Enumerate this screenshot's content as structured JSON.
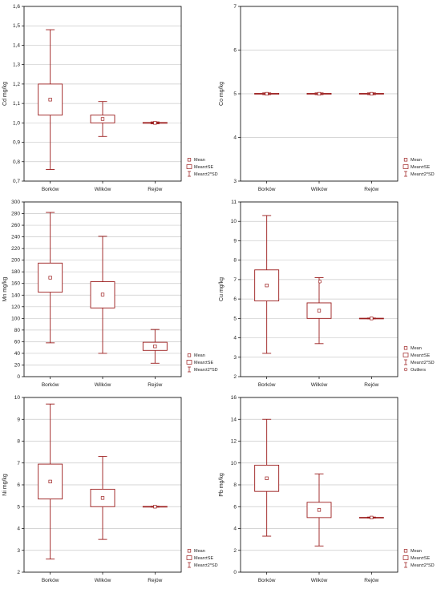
{
  "colors": {
    "box": "#9b1c1c",
    "grid": "#c9c9c9",
    "frame": "#000000",
    "text": "#222222"
  },
  "legend_labels": {
    "mean": "Mean",
    "se": "Mean±SE",
    "sd": "Mean±2*SD",
    "outliers": "Outliers"
  },
  "chart_data": [
    {
      "type": "box",
      "ylabel": "Cd mg/kg",
      "categories": [
        "Borków",
        "Wilków",
        "Rejów"
      ],
      "ylim": [
        0.7,
        1.6
      ],
      "yticks": [
        0.7,
        0.8,
        0.9,
        1.0,
        1.1,
        1.2,
        1.3,
        1.4,
        1.5,
        1.6
      ],
      "ytick_labels": [
        "0,7",
        "0,8",
        "0,9",
        "1,0",
        "1,1",
        "1,2",
        "1,3",
        "1,4",
        "1,5",
        "1,6"
      ],
      "mean": [
        1.12,
        1.02,
        1.0
      ],
      "se_low": [
        1.04,
        1.0,
        0.998
      ],
      "se_high": [
        1.2,
        1.04,
        1.002
      ],
      "sd_low": [
        0.76,
        0.93,
        0.995
      ],
      "sd_high": [
        1.48,
        1.11,
        1.005
      ],
      "legend": [
        "Mean",
        "Mean±SE",
        "Mean±2*SD"
      ]
    },
    {
      "type": "box",
      "ylabel": "Co mg/kg",
      "categories": [
        "Borków",
        "Wilków",
        "Rejów"
      ],
      "ylim": [
        3,
        7
      ],
      "yticks": [
        3,
        4,
        5,
        6,
        7
      ],
      "ytick_labels": [
        "3",
        "4",
        "5",
        "6",
        "7"
      ],
      "mean": [
        5.0,
        5.0,
        5.0
      ],
      "se_low": [
        4.99,
        4.99,
        4.99
      ],
      "se_high": [
        5.01,
        5.01,
        5.01
      ],
      "sd_low": [
        4.98,
        4.98,
        4.98
      ],
      "sd_high": [
        5.02,
        5.02,
        5.02
      ],
      "legend": [
        "Mean",
        "Mean±SE",
        "Mean±2*SD"
      ]
    },
    {
      "type": "box",
      "ylabel": "Mn mg/kg",
      "categories": [
        "Borków",
        "Wilków",
        "Rejów"
      ],
      "ylim": [
        0,
        300
      ],
      "yticks": [
        0,
        20,
        40,
        60,
        80,
        100,
        120,
        140,
        160,
        180,
        200,
        220,
        240,
        260,
        280,
        300
      ],
      "ytick_labels": [
        "0",
        "20",
        "40",
        "60",
        "80",
        "100",
        "120",
        "140",
        "160",
        "180",
        "200",
        "220",
        "240",
        "260",
        "280",
        "300"
      ],
      "mean": [
        170,
        141,
        52
      ],
      "se_low": [
        145,
        118,
        45
      ],
      "se_high": [
        195,
        163,
        59
      ],
      "sd_low": [
        58,
        40,
        23
      ],
      "sd_high": [
        282,
        241,
        81
      ],
      "legend": [
        "Mean",
        "Mean±SE",
        "Mean±2*SD"
      ]
    },
    {
      "type": "box",
      "ylabel": "Cu mg/kg",
      "categories": [
        "Borków",
        "Wilków",
        "Rejów"
      ],
      "ylim": [
        2,
        11
      ],
      "yticks": [
        2,
        3,
        4,
        5,
        6,
        7,
        8,
        9,
        10,
        11
      ],
      "ytick_labels": [
        "2",
        "3",
        "4",
        "5",
        "6",
        "7",
        "8",
        "9",
        "10",
        "11"
      ],
      "mean": [
        6.7,
        5.4,
        5.0
      ],
      "se_low": [
        5.9,
        5.0,
        4.99
      ],
      "se_high": [
        7.5,
        5.8,
        5.01
      ],
      "sd_low": [
        3.2,
        3.7,
        4.98
      ],
      "sd_high": [
        10.3,
        7.1,
        5.02
      ],
      "outliers": [
        null,
        6.9,
        null
      ],
      "legend": [
        "Mean",
        "Mean±SE",
        "Mean±2*SD",
        "Outliers"
      ]
    },
    {
      "type": "box",
      "ylabel": "Ni mg/kg",
      "categories": [
        "Borków",
        "Wilków",
        "Rejów"
      ],
      "ylim": [
        2,
        10
      ],
      "yticks": [
        2,
        3,
        4,
        5,
        6,
        7,
        8,
        9,
        10
      ],
      "ytick_labels": [
        "2",
        "3",
        "4",
        "5",
        "6",
        "7",
        "8",
        "9",
        "10"
      ],
      "mean": [
        6.15,
        5.4,
        5.0
      ],
      "se_low": [
        5.35,
        5.0,
        4.99
      ],
      "se_high": [
        6.95,
        5.8,
        5.01
      ],
      "sd_low": [
        2.6,
        3.5,
        4.98
      ],
      "sd_high": [
        9.7,
        7.3,
        5.02
      ],
      "legend": [
        "Mean",
        "Mean±SE",
        "Mean±2*SD"
      ]
    },
    {
      "type": "box",
      "ylabel": "Pb mg/kg",
      "categories": [
        "Borków",
        "Wilków",
        "Rejów"
      ],
      "ylim": [
        0,
        16
      ],
      "yticks": [
        0,
        2,
        4,
        6,
        8,
        10,
        12,
        14,
        16
      ],
      "ytick_labels": [
        "0",
        "2",
        "4",
        "6",
        "8",
        "10",
        "12",
        "14",
        "16"
      ],
      "mean": [
        8.6,
        5.7,
        5.0
      ],
      "se_low": [
        7.4,
        5.0,
        4.98
      ],
      "se_high": [
        9.8,
        6.4,
        5.02
      ],
      "sd_low": [
        3.3,
        2.4,
        4.95
      ],
      "sd_high": [
        14.0,
        9.0,
        5.05
      ],
      "legend": [
        "Mean",
        "Mean±SE",
        "Mean±2*SD"
      ]
    }
  ]
}
